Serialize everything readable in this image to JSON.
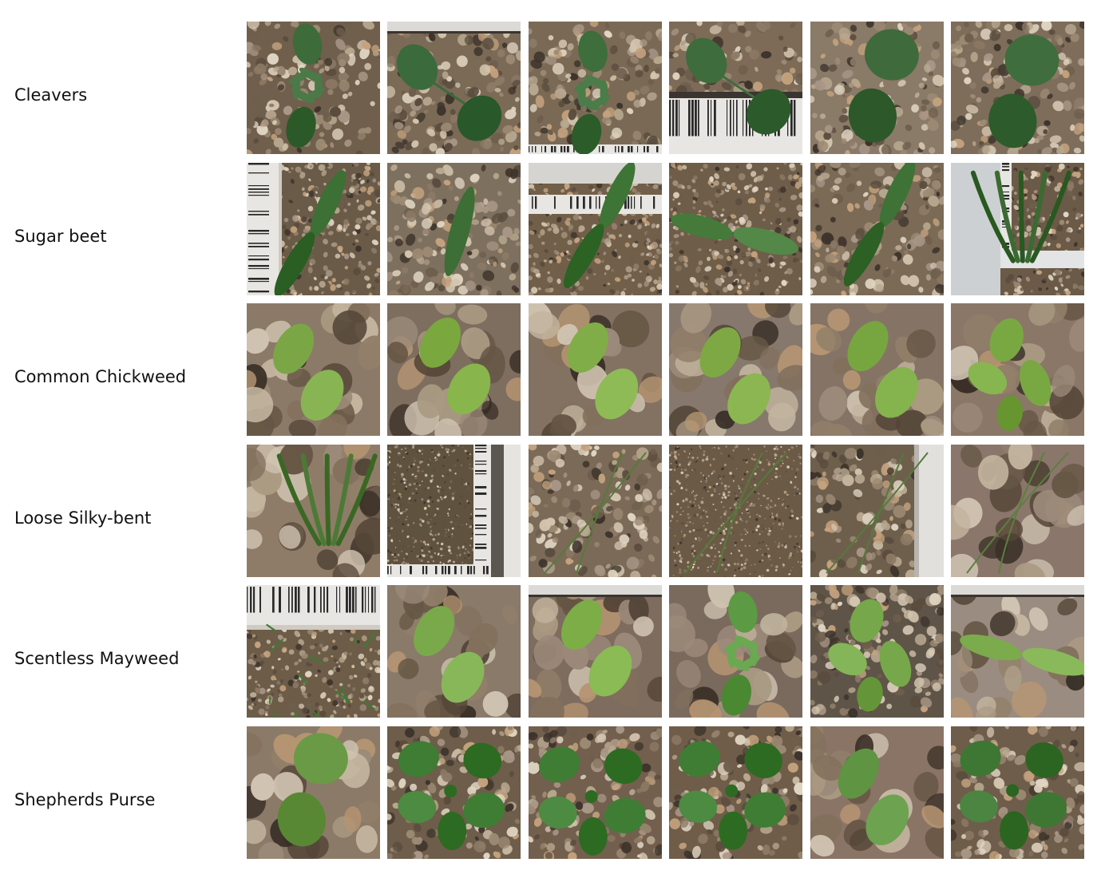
{
  "grid": {
    "rows": [
      {
        "label": "Cleavers",
        "tiles": [
          {
            "palette": "coarse-gravel",
            "plant": "cleavers-whorl",
            "bg": "#6f5f4c",
            "leaf": "#3e6b3a",
            "ruler": "none"
          },
          {
            "palette": "coarse-gravel",
            "plant": "cleavers-pair",
            "bg": "#7a6a56",
            "leaf": "#3b6a3c",
            "ruler": "top-strip"
          },
          {
            "palette": "coarse-gravel",
            "plant": "cleavers-whorl",
            "bg": "#7a6a55",
            "leaf": "#3d6e3b",
            "ruler": "bottom-strip"
          },
          {
            "palette": "coarse-gravel",
            "plant": "cleavers-pair",
            "bg": "#7d6b58",
            "leaf": "#3e6c3d",
            "ruler": "bottom-barcode"
          },
          {
            "palette": "coarse-gravel",
            "plant": "two-round-leaves",
            "bg": "#8a7a68",
            "leaf": "#3f6a3c",
            "ruler": "none"
          },
          {
            "palette": "coarse-gravel",
            "plant": "two-round-leaves",
            "bg": "#7d6d5a",
            "leaf": "#3f6d3e",
            "ruler": "none"
          }
        ]
      },
      {
        "label": "Sugar beet",
        "tiles": [
          {
            "palette": "fine-gravel",
            "plant": "narrow-cotyledons",
            "bg": "#6a5b48",
            "leaf": "#3d7034",
            "ruler": "left-barcode"
          },
          {
            "palette": "coarse-gravel",
            "plant": "single-blade",
            "bg": "#7e705e",
            "leaf": "#3c6e35",
            "ruler": "none"
          },
          {
            "palette": "fine-gravel",
            "plant": "narrow-cotyledons",
            "bg": "#715f4a",
            "leaf": "#3e7436",
            "ruler": "top-barcode"
          },
          {
            "palette": "fine-gravel",
            "plant": "wide-spread-pair",
            "bg": "#6e5d49",
            "leaf": "#457a3a",
            "ruler": "none"
          },
          {
            "palette": "coarse-gravel",
            "plant": "narrow-cotyledons",
            "bg": "#7a6a56",
            "leaf": "#3f7236",
            "ruler": "none"
          },
          {
            "palette": "fine-gravel",
            "plant": "grass-tuft",
            "bg": "#6a5a47",
            "leaf": "#3b6a33",
            "ruler": "corner-frame"
          }
        ]
      },
      {
        "label": "Common Chickweed",
        "tiles": [
          {
            "palette": "blurred-pebbles",
            "plant": "chickweed-pair",
            "bg": "#8c7a68",
            "leaf": "#7ba646",
            "ruler": "none"
          },
          {
            "palette": "blurred-pebbles",
            "plant": "chickweed-pair",
            "bg": "#7e6e60",
            "leaf": "#7aa83e",
            "ruler": "none"
          },
          {
            "palette": "blurred-pebbles",
            "plant": "chickweed-pair",
            "bg": "#837261",
            "leaf": "#80ad47",
            "ruler": "none"
          },
          {
            "palette": "blurred-pebbles",
            "plant": "chickweed-pair",
            "bg": "#86786c",
            "leaf": "#7ea844",
            "ruler": "none"
          },
          {
            "palette": "blurred-pebbles",
            "plant": "chickweed-pair",
            "bg": "#857465",
            "leaf": "#77a640",
            "ruler": "none"
          },
          {
            "palette": "blurred-pebbles",
            "plant": "chickweed-quad",
            "bg": "#8a7767",
            "leaf": "#79a843",
            "ruler": "none"
          }
        ]
      },
      {
        "label": "Loose Silky-bent",
        "tiles": [
          {
            "palette": "blurred-pebbles",
            "plant": "grass-tuft",
            "bg": "#8f7c68",
            "leaf": "#4c7a36",
            "ruler": "none"
          },
          {
            "palette": "fine-sand",
            "plant": "none",
            "bg": "#5f523f",
            "leaf": "#4a7434",
            "ruler": "right-frame"
          },
          {
            "palette": "coarse-gravel",
            "plant": "thin-grass",
            "bg": "#7a6a57",
            "leaf": "#567a3e",
            "ruler": "none"
          },
          {
            "palette": "fine-sand",
            "plant": "thin-grass",
            "bg": "#6a5a46",
            "leaf": "#567a3c",
            "ruler": "none"
          },
          {
            "palette": "coarse-gravel",
            "plant": "thin-grass",
            "bg": "#6e5f4d",
            "leaf": "#547a3d",
            "ruler": "right-label"
          },
          {
            "palette": "blurred-pebbles",
            "plant": "thin-grass",
            "bg": "#8a766a",
            "leaf": "#5b8040",
            "ruler": "none"
          }
        ]
      },
      {
        "label": "Scentless Mayweed",
        "tiles": [
          {
            "palette": "fine-gravel",
            "plant": "feathery",
            "bg": "#6c5c48",
            "leaf": "#3f7a35",
            "ruler": "top-number"
          },
          {
            "palette": "blurred-pebbles",
            "plant": "chickweed-pair",
            "bg": "#8a7a6a",
            "leaf": "#7aa94c",
            "ruler": "none"
          },
          {
            "palette": "blurred-pebbles",
            "plant": "chickweed-pair",
            "bg": "#7e6c5e",
            "leaf": "#7cad46",
            "ruler": "top-strip"
          },
          {
            "palette": "blurred-pebbles",
            "plant": "cleavers-whorl",
            "bg": "#7a6a5e",
            "leaf": "#5c9a44",
            "ruler": "none"
          },
          {
            "palette": "coarse-gravel",
            "plant": "chickweed-quad",
            "bg": "#5f5448",
            "leaf": "#76a74a",
            "ruler": "none"
          },
          {
            "palette": "blurred-pebbles",
            "plant": "wide-spread-pair",
            "bg": "#9a8c80",
            "leaf": "#7bab4c",
            "ruler": "top-strip"
          }
        ]
      },
      {
        "label": "Shepherds Purse",
        "tiles": [
          {
            "palette": "blurred-pebbles",
            "plant": "two-round-leaves",
            "bg": "#8c7a68",
            "leaf": "#6a9a46",
            "ruler": "none"
          },
          {
            "palette": "coarse-gravel",
            "plant": "rosette",
            "bg": "#6d5d4a",
            "leaf": "#3f7c34",
            "ruler": "none"
          },
          {
            "palette": "coarse-gravel",
            "plant": "rosette",
            "bg": "#735f4d",
            "leaf": "#3f7d35",
            "ruler": "none"
          },
          {
            "palette": "coarse-gravel",
            "plant": "rosette",
            "bg": "#6f5d4a",
            "leaf": "#3f7d34",
            "ruler": "none"
          },
          {
            "palette": "blurred-pebbles",
            "plant": "chickweed-pair",
            "bg": "#8a7465",
            "leaf": "#5f9442",
            "ruler": "none"
          },
          {
            "palette": "coarse-gravel",
            "plant": "rosette",
            "bg": "#6e5d4a",
            "leaf": "#3d7733",
            "ruler": "none"
          }
        ]
      }
    ]
  }
}
